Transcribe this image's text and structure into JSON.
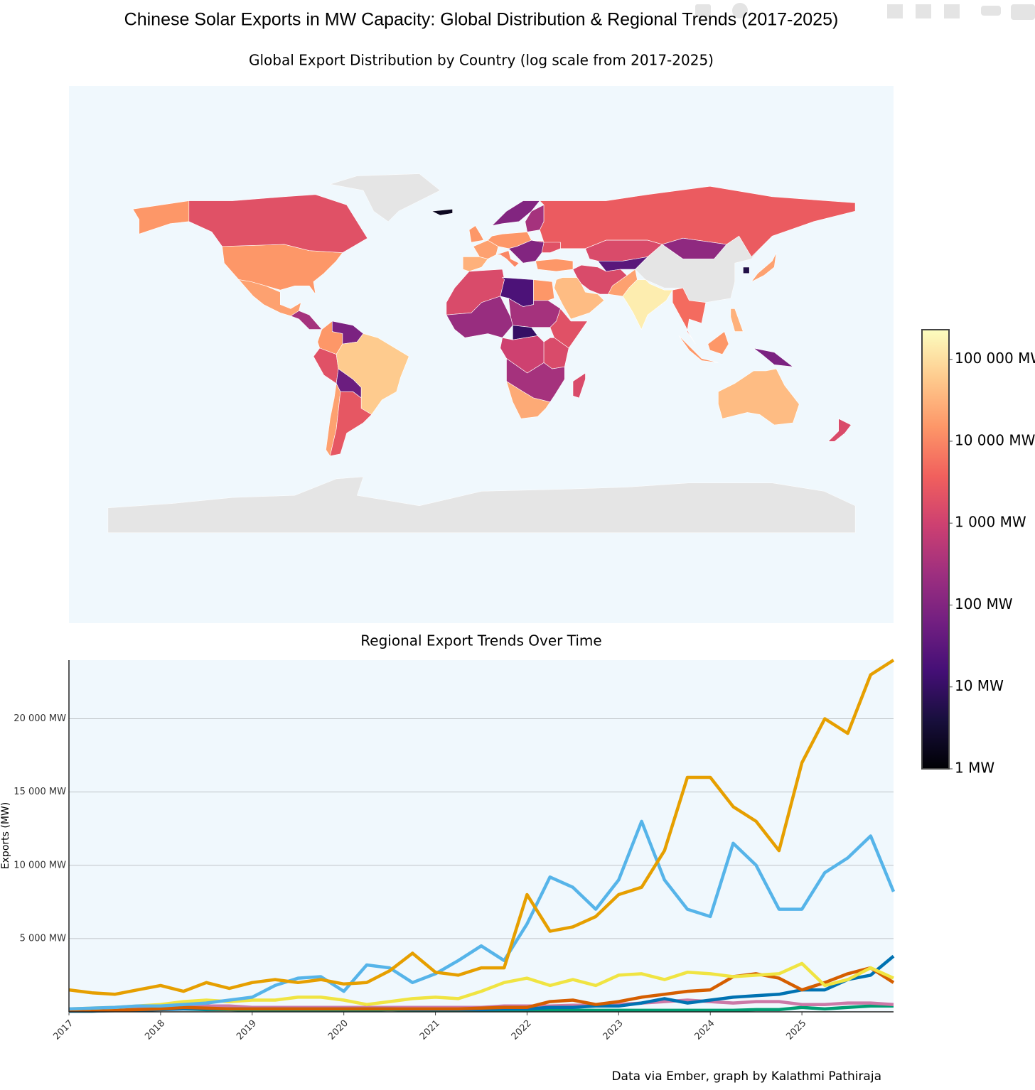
{
  "title": "Chinese Solar Exports in MW Capacity: Global Distribution & Regional Trends (2017-2025)",
  "source": "Data via Ember, graph by Kalathmi Pathiraja",
  "chart_data": [
    {
      "type": "choropleth",
      "title": "Global Export Distribution by Country (log scale from 2017-2025)",
      "z": [
        15000,
        2000,
        20000,
        300,
        15000,
        80,
        2000,
        60000,
        50,
        20000,
        2500,
        30000,
        20000,
        15000,
        10000,
        15000,
        100,
        300,
        100,
        2000,
        15000,
        3000,
        1500,
        150,
        30,
        1500,
        20000,
        40000,
        150000,
        5000,
        20000,
        5,
        15000,
        30000,
        80,
        40000,
        1500,
        1500,
        20,
        15000,
        300,
        200,
        2000,
        10,
        1000,
        1500,
        300,
        25000,
        1500,
        2
      ],
      "log": true,
      "zlim": [
        1,
        230000
      ],
      "colorscale": [
        "#000004",
        "#180f3d",
        "#440f76",
        "#721f81",
        "#9e2f7f",
        "#cd4071",
        "#f1605d",
        "#fd9668",
        "#feca8d",
        "#fcfdbf"
      ],
      "colorbar_ticks": [
        {
          "value": 1,
          "label": "1 MW"
        },
        {
          "value": 10,
          "label": "10 MW"
        },
        {
          "value": 100,
          "label": "100 MW"
        },
        {
          "value": 1000,
          "label": "1 000 MW"
        },
        {
          "value": 10000,
          "label": "10 000 MW"
        },
        {
          "value": 100000,
          "label": "100 000 MW"
        }
      ]
    },
    {
      "type": "line",
      "title": "Regional Export Trends Over Time",
      "ylabel": "Exports (MW)",
      "x": [
        2017,
        2017.25,
        2017.5,
        2017.75,
        2018,
        2018.25,
        2018.5,
        2018.75,
        2019,
        2019.25,
        2019.5,
        2019.75,
        2020,
        2020.25,
        2020.5,
        2020.75,
        2021,
        2021.25,
        2021.5,
        2021.75,
        2022,
        2022.25,
        2022.5,
        2022.75,
        2023,
        2023.25,
        2023.5,
        2023.75,
        2024,
        2024.25,
        2024.5,
        2024.75,
        2025,
        2025.25,
        2025.5,
        2025.75,
        2026
      ],
      "xlim": [
        2017,
        2026
      ],
      "xticks": [
        2017,
        2018,
        2019,
        2020,
        2021,
        2022,
        2023,
        2024,
        2025
      ],
      "ylim": [
        0,
        24000
      ],
      "yticks": [
        {
          "value": 5000,
          "label": "5 000 MW"
        },
        {
          "value": 10000,
          "label": "10 000 MW"
        },
        {
          "value": 15000,
          "label": "15 000 MW"
        },
        {
          "value": 20000,
          "label": "20 000 MW"
        }
      ],
      "grid": true,
      "series": [
        {
          "color": "#009E73",
          "values": [
            50,
            50,
            100,
            300,
            200,
            200,
            150,
            150,
            100,
            100,
            100,
            100,
            100,
            100,
            150,
            100,
            100,
            100,
            100,
            100,
            100,
            100,
            100,
            100,
            100,
            100,
            100,
            100,
            100,
            100,
            150,
            150,
            300,
            200,
            300,
            400,
            400
          ]
        },
        {
          "color": "#CC79A7",
          "values": [
            150,
            150,
            200,
            250,
            300,
            500,
            400,
            400,
            300,
            300,
            300,
            300,
            300,
            300,
            300,
            300,
            300,
            300,
            300,
            400,
            400,
            400,
            450,
            450,
            500,
            600,
            700,
            800,
            700,
            600,
            700,
            700,
            500,
            500,
            600,
            600,
            500
          ]
        },
        {
          "color": "#0072B2",
          "values": [
            50,
            50,
            80,
            100,
            150,
            200,
            200,
            200,
            200,
            200,
            200,
            200,
            200,
            200,
            200,
            150,
            150,
            150,
            150,
            200,
            200,
            300,
            300,
            400,
            400,
            600,
            900,
            600,
            800,
            1000,
            1100,
            1200,
            1500,
            1500,
            2200,
            2500,
            3800
          ]
        },
        {
          "color": "#D55E00",
          "values": [
            100,
            100,
            100,
            150,
            200,
            300,
            250,
            200,
            200,
            200,
            200,
            200,
            200,
            200,
            200,
            200,
            200,
            200,
            250,
            300,
            300,
            700,
            800,
            500,
            700,
            1000,
            1200,
            1400,
            1500,
            2400,
            2600,
            2300,
            1500,
            2000,
            2600,
            3000,
            2000
          ]
        },
        {
          "color": "#F0E442",
          "values": [
            200,
            250,
            300,
            400,
            500,
            700,
            800,
            700,
            800,
            800,
            1000,
            1000,
            800,
            500,
            700,
            900,
            1000,
            900,
            1400,
            2000,
            2300,
            1800,
            2200,
            1800,
            2500,
            2600,
            2200,
            2700,
            2600,
            2400,
            2500,
            2600,
            3300,
            1800,
            2200,
            3000,
            2300
          ]
        },
        {
          "color": "#56B4E9",
          "values": [
            200,
            250,
            300,
            400,
            400,
            500,
            600,
            800,
            1000,
            1800,
            2300,
            2400,
            1400,
            3200,
            3000,
            2000,
            2600,
            3500,
            4500,
            3500,
            6000,
            9200,
            8500,
            7000,
            9000,
            13000,
            9000,
            7000,
            6500,
            11500,
            10000,
            7000,
            7000,
            9500,
            10500,
            12000,
            8200
          ]
        },
        {
          "color": "#E69F00",
          "values": [
            1500,
            1300,
            1200,
            1500,
            1800,
            1400,
            2000,
            1600,
            2000,
            2200,
            2000,
            2200,
            1900,
            2000,
            2800,
            4000,
            2700,
            2500,
            3000,
            3000,
            8000,
            5500,
            5800,
            6500,
            8000,
            8500,
            11000,
            16000,
            16000,
            14000,
            13000,
            11000,
            17000,
            20000,
            19000,
            23000,
            24000
          ]
        }
      ]
    }
  ]
}
